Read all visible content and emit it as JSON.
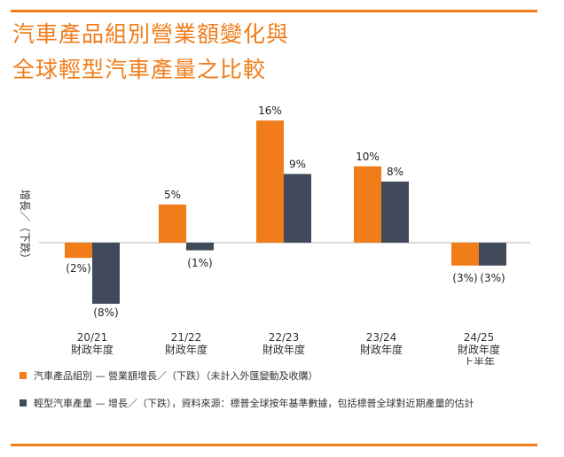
{
  "title_line1": "汽車產品組別營業額變化與",
  "title_line2": "全球輕型汽車產量之比較",
  "legend": [
    {
      "label": "汽車產品組別 — 營業額增長／（下跌）（未計入外匯變動及收購）"
    },
    {
      "label": "輕型汽車產量 — 增長／（下跌），資料來源：標普全球按年基準數據，包括標普全球對近期產量的估計"
    }
  ],
  "chart_data": {
    "type": "bar",
    "ylabel": "增長／（下跌）",
    "categories": [
      [
        "20/21",
        "財政年度"
      ],
      [
        "21/22",
        "財政年度"
      ],
      [
        "22/23",
        "財政年度"
      ],
      [
        "23/24",
        "財政年度"
      ],
      [
        "24/25",
        "財政年度",
        "上半年"
      ]
    ],
    "series": [
      {
        "name": "汽車產品組別 — 營業額增長／（下跌）（未計入外匯變動及收購）",
        "color": "#f07d1a",
        "values": [
          -2,
          5,
          16,
          10,
          -3
        ],
        "labels": [
          "(2%)",
          "5%",
          "16%",
          "10%",
          "(3%)"
        ]
      },
      {
        "name": "輕型汽車產量 — 增長／（下跌），資料來源：標普全球按年基準數據，包括標普全球對近期產量的估計",
        "color": "#414a5a",
        "values": [
          -8,
          -1,
          9,
          8,
          -3
        ],
        "labels": [
          "(8%)",
          "(1%)",
          "9%",
          "8%",
          "(3%)"
        ]
      }
    ],
    "ylim": [
      -8,
      16
    ],
    "grid": false
  }
}
